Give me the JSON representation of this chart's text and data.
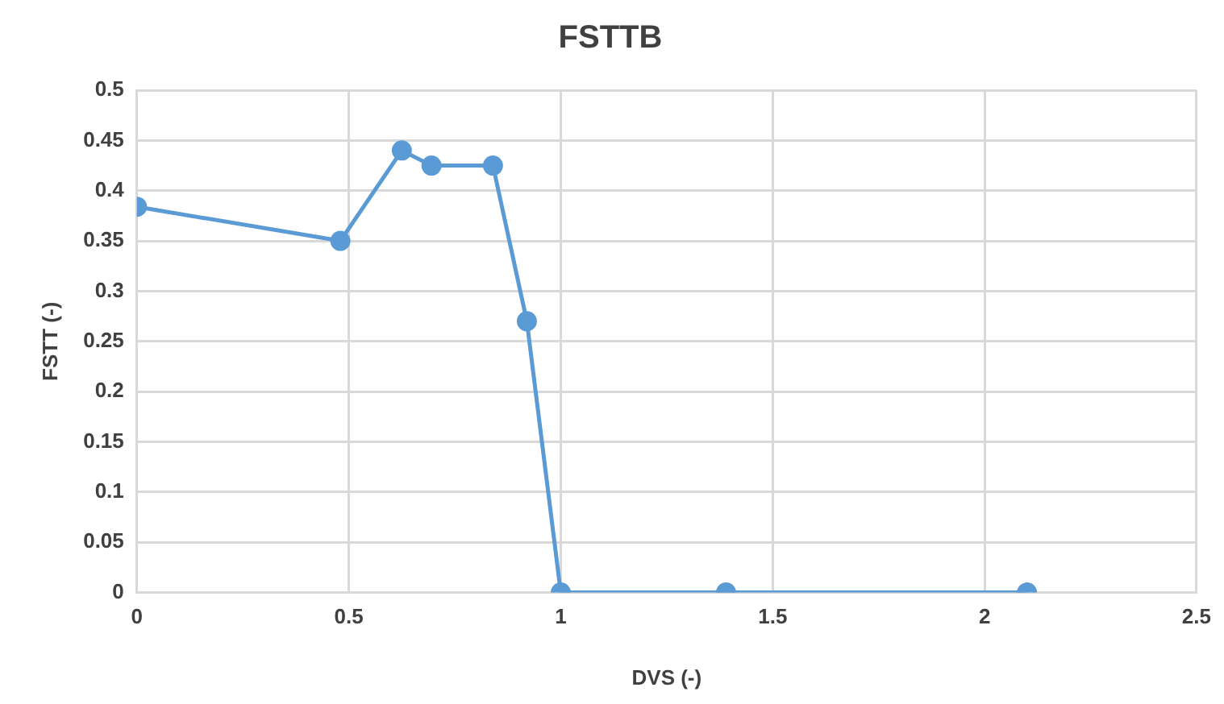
{
  "chart_data": {
    "type": "line",
    "title": "FSTTB",
    "xlabel": "DVS (-)",
    "ylabel": "FSTT (-)",
    "x": [
      0,
      0.48,
      0.625,
      0.695,
      0.84,
      0.92,
      1.0,
      1.39,
      2.1
    ],
    "series": [
      {
        "color": "#5b9bd5",
        "values": [
          0.384,
          0.35,
          0.44,
          0.425,
          0.425,
          0.27,
          0,
          0,
          0
        ]
      }
    ],
    "xlim": [
      0,
      2.5
    ],
    "xticks": [
      0,
      0.5,
      1,
      1.5,
      2,
      2.5
    ],
    "ylim": [
      0,
      0.5
    ],
    "yticks": [
      0,
      0.05,
      0.1,
      0.15,
      0.2,
      0.25,
      0.3,
      0.35,
      0.4,
      0.45,
      0.5
    ],
    "grid": true,
    "legend": false,
    "marker": "circle",
    "line_style": "solid"
  }
}
